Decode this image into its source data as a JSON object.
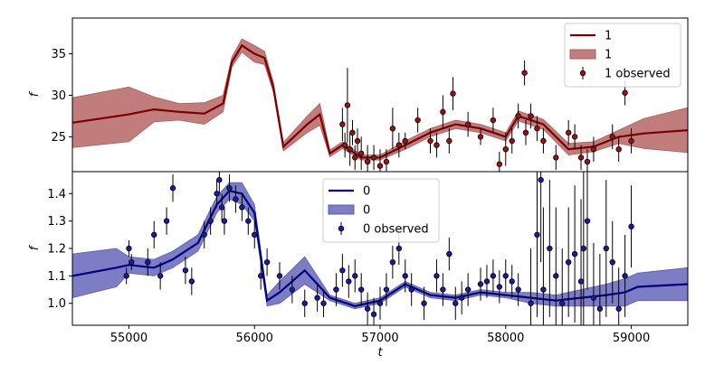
{
  "chart_data": [
    {
      "type": "line",
      "xlabel": "",
      "ylabel": "f",
      "xlim": [
        54550,
        59450
      ],
      "ylim": [
        20.8,
        39.3
      ],
      "yticks": [
        25,
        30,
        35
      ],
      "grid": false,
      "legend_position": "top-right",
      "colors": {
        "line": "#7b0000",
        "band": "#b25b5b",
        "points": "#a01010"
      },
      "legend": [
        {
          "kind": "line",
          "label": "1"
        },
        {
          "kind": "band",
          "label": "1"
        },
        {
          "kind": "points",
          "label": "1 observed"
        }
      ],
      "model": {
        "x": [
          54550,
          55000,
          55200,
          55400,
          55600,
          55750,
          55820,
          55900,
          56000,
          56080,
          56150,
          56230,
          56420,
          56520,
          56600,
          56700,
          56850,
          57000,
          57200,
          57400,
          57600,
          57800,
          58000,
          58100,
          58300,
          58500,
          58700,
          58900,
          59000,
          59100,
          59450
        ],
        "y": [
          26.7,
          27.7,
          28.3,
          28.0,
          27.8,
          29.0,
          34.0,
          36.0,
          35.0,
          34.5,
          31.0,
          23.8,
          26.5,
          27.7,
          23.0,
          24.0,
          22.5,
          22.5,
          24.0,
          25.5,
          26.5,
          26.0,
          25.0,
          27.5,
          26.5,
          23.5,
          23.8,
          25.0,
          25.2,
          25.4,
          25.8
        ],
        "err": [
          3.0,
          3.3,
          1.5,
          1.0,
          1.3,
          1.0,
          0.6,
          0.8,
          1.0,
          0.8,
          0.6,
          0.5,
          1.0,
          1.3,
          0.4,
          0.4,
          0.3,
          0.3,
          0.5,
          0.5,
          0.5,
          0.5,
          0.5,
          0.6,
          0.6,
          0.7,
          0.6,
          0.8,
          1.3,
          1.8,
          2.7
        ]
      },
      "observed": {
        "x": [
          56700,
          56720,
          56740,
          56760,
          56780,
          56800,
          56820,
          56850,
          56900,
          56950,
          57000,
          57050,
          57100,
          57150,
          57200,
          57300,
          57400,
          57450,
          57500,
          57550,
          57580,
          57700,
          57800,
          57900,
          57950,
          58000,
          58050,
          58100,
          58150,
          58160,
          58200,
          58250,
          58300,
          58400,
          58500,
          58550,
          58600,
          58650,
          58700,
          58850,
          58900,
          58950,
          59000
        ],
        "y": [
          26.5,
          24.0,
          28.8,
          23.5,
          25.5,
          22.5,
          24.5,
          23.0,
          22.0,
          22.5,
          21.5,
          22.0,
          26.0,
          24.0,
          24.5,
          27.0,
          24.5,
          24.0,
          28.0,
          24.5,
          30.2,
          26.5,
          25.0,
          27.0,
          21.7,
          23.5,
          24.5,
          27.5,
          32.7,
          25.5,
          27.5,
          26.0,
          24.5,
          22.5,
          25.5,
          25.0,
          22.5,
          22.0,
          23.5,
          25.0,
          23.5,
          30.3,
          24.5
        ],
        "err": [
          2.0,
          1.5,
          4.5,
          2.0,
          1.5,
          1.5,
          1.5,
          2.0,
          2.0,
          1.5,
          2.0,
          1.5,
          2.5,
          1.5,
          1.0,
          1.5,
          1.5,
          1.5,
          2.0,
          1.5,
          2.0,
          1.5,
          1.0,
          1.5,
          1.5,
          2.0,
          1.5,
          1.5,
          1.5,
          1.5,
          1.5,
          1.5,
          1.5,
          1.5,
          1.5,
          1.5,
          1.5,
          1.5,
          1.5,
          1.5,
          1.5,
          1.5,
          1.5
        ]
      }
    },
    {
      "type": "line",
      "xlabel": "t",
      "ylabel": "f",
      "xlim": [
        54550,
        59450
      ],
      "ylim": [
        0.92,
        1.48
      ],
      "yticks": [
        1.0,
        1.1,
        1.2,
        1.3,
        1.4
      ],
      "xticks": [
        55000,
        56000,
        57000,
        58000,
        59000
      ],
      "grid": false,
      "legend_position": "top-center",
      "colors": {
        "line": "#00007f",
        "band": "#5c5cb8",
        "points": "#1a1aa8"
      },
      "legend": [
        {
          "kind": "line",
          "label": "0"
        },
        {
          "kind": "band",
          "label": "0"
        },
        {
          "kind": "points",
          "label": "0 observed"
        }
      ],
      "model": {
        "x": [
          54550,
          54900,
          55000,
          55200,
          55350,
          55550,
          55700,
          55800,
          55900,
          56000,
          56100,
          56200,
          56400,
          56600,
          56800,
          57000,
          57200,
          57400,
          57600,
          57800,
          58000,
          58200,
          58400,
          58600,
          58800,
          58950,
          59050,
          59450
        ],
        "y": [
          1.1,
          1.13,
          1.14,
          1.13,
          1.16,
          1.22,
          1.36,
          1.41,
          1.4,
          1.33,
          1.01,
          1.04,
          1.12,
          1.02,
          0.99,
          1.01,
          1.07,
          1.03,
          1.02,
          1.04,
          1.03,
          1.02,
          1.01,
          1.02,
          1.03,
          1.04,
          1.06,
          1.07
        ],
        "err": [
          0.08,
          0.07,
          0.03,
          0.03,
          0.03,
          0.03,
          0.03,
          0.03,
          0.04,
          0.03,
          0.02,
          0.04,
          0.05,
          0.01,
          0.01,
          0.01,
          0.01,
          0.01,
          0.01,
          0.01,
          0.01,
          0.02,
          0.02,
          0.03,
          0.04,
          0.05,
          0.05,
          0.06
        ]
      },
      "observed": {
        "x": [
          54980,
          55000,
          55020,
          55150,
          55200,
          55250,
          55300,
          55350,
          55450,
          55500,
          55600,
          55650,
          55700,
          55720,
          55740,
          55760,
          55800,
          55850,
          55900,
          55950,
          56000,
          56050,
          56100,
          56200,
          56300,
          56400,
          56500,
          56550,
          56650,
          56700,
          56750,
          56800,
          56850,
          56900,
          56950,
          57000,
          57050,
          57100,
          57150,
          57200,
          57250,
          57350,
          57450,
          57500,
          57550,
          57600,
          57650,
          57700,
          57800,
          57850,
          57900,
          57950,
          58000,
          58050,
          58100,
          58200,
          58250,
          58280,
          58300,
          58350,
          58400,
          58450,
          58500,
          58550,
          58600,
          58620,
          58650,
          58700,
          58750,
          58800,
          58850,
          58900,
          58950,
          59000
        ],
        "y": [
          1.1,
          1.2,
          1.15,
          1.15,
          1.25,
          1.1,
          1.3,
          1.42,
          1.12,
          1.08,
          1.25,
          1.3,
          1.4,
          1.45,
          1.35,
          1.3,
          1.42,
          1.38,
          1.35,
          1.3,
          1.25,
          1.1,
          1.15,
          1.1,
          1.05,
          1.0,
          1.02,
          1.0,
          1.05,
          1.12,
          1.08,
          1.1,
          1.05,
          0.98,
          0.96,
          1.0,
          1.05,
          1.15,
          1.2,
          1.1,
          1.05,
          1.0,
          1.1,
          1.05,
          1.18,
          1.0,
          1.02,
          1.05,
          1.07,
          1.08,
          1.1,
          1.06,
          1.1,
          1.08,
          1.05,
          1.0,
          1.25,
          1.45,
          1.05,
          1.2,
          1.1,
          1.0,
          1.15,
          1.18,
          1.08,
          1.2,
          1.3,
          1.02,
          0.98,
          1.2,
          1.15,
          0.98,
          1.1,
          1.28
        ],
        "err": [
          0.03,
          0.03,
          0.03,
          0.05,
          0.05,
          0.05,
          0.05,
          0.05,
          0.05,
          0.05,
          0.05,
          0.05,
          0.05,
          0.05,
          0.05,
          0.05,
          0.05,
          0.05,
          0.05,
          0.05,
          0.05,
          0.05,
          0.05,
          0.05,
          0.05,
          0.05,
          0.05,
          0.05,
          0.06,
          0.06,
          0.06,
          0.06,
          0.06,
          0.06,
          0.06,
          0.06,
          0.06,
          0.06,
          0.06,
          0.06,
          0.06,
          0.06,
          0.06,
          0.06,
          0.06,
          0.06,
          0.06,
          0.06,
          0.06,
          0.06,
          0.06,
          0.06,
          0.06,
          0.06,
          0.06,
          0.2,
          0.3,
          0.3,
          0.3,
          0.25,
          0.25,
          0.2,
          0.2,
          0.25,
          0.3,
          0.3,
          0.25,
          0.2,
          0.2,
          0.25,
          0.15,
          0.15,
          0.15,
          0.15
        ]
      }
    }
  ]
}
